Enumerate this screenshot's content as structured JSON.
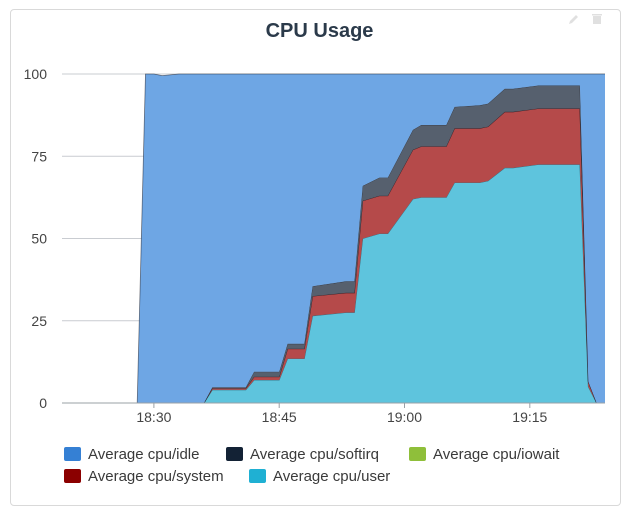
{
  "panel": {
    "title": "CPU Usage",
    "edit_icon": "pencil-icon",
    "delete_icon": "trash-icon"
  },
  "chart_data": {
    "type": "area",
    "stacked": true,
    "title": "CPU Usage",
    "xlabel": "",
    "ylabel": "",
    "ylim": [
      0,
      100
    ],
    "yticks": [
      0,
      25,
      50,
      75,
      100
    ],
    "y_tick_labels": [
      "0",
      "25",
      "50",
      "75",
      "100"
    ],
    "xlim": [
      "18:19",
      "19:24"
    ],
    "xticks": [
      "18:30",
      "18:45",
      "19:00",
      "19:15"
    ],
    "x_tick_labels": [
      "18:30",
      "18:45",
      "19:00",
      "19:15"
    ],
    "grid": true,
    "legend": "bottom",
    "x": [
      "18:19",
      "18:28",
      "18:29",
      "18:30",
      "18:31",
      "18:33",
      "18:34",
      "18:35",
      "18:36",
      "18:37",
      "18:41",
      "18:42",
      "18:45",
      "18:46",
      "18:48",
      "18:49",
      "18:53",
      "18:54",
      "18:55",
      "18:57",
      "18:58",
      "19:01",
      "19:02",
      "19:05",
      "19:06",
      "19:09",
      "19:10",
      "19:12",
      "19:13",
      "19:16",
      "19:17",
      "19:21",
      "19:22",
      "19:23",
      "19:24"
    ],
    "series": [
      {
        "name": "Average cpu/user",
        "color": "#5ec4dd",
        "values": [
          0,
          0,
          0,
          0,
          0,
          0,
          0,
          0,
          0,
          4,
          4,
          7,
          7,
          13.5,
          13.5,
          26.5,
          27.5,
          27.5,
          50,
          51.5,
          51.5,
          62,
          62.5,
          62.5,
          67,
          67,
          67.5,
          71.5,
          71.5,
          72.5,
          72.5,
          72.5,
          5,
          0,
          0
        ]
      },
      {
        "name": "Average cpu/system",
        "color": "#b54a4a",
        "values": [
          0,
          0,
          0,
          0,
          0,
          0,
          0,
          0,
          0,
          0.5,
          0.5,
          1,
          1,
          3,
          3,
          6,
          6,
          6,
          11.5,
          11.5,
          11.5,
          15,
          15.5,
          15.5,
          16.5,
          16.5,
          16.5,
          17,
          17,
          17,
          17,
          17,
          1.5,
          0,
          0
        ]
      },
      {
        "name": "Average cpu/iowait",
        "color": "#8fbf3a",
        "values": [
          0,
          0,
          0,
          0,
          0,
          0,
          0,
          0,
          0,
          0,
          0,
          0,
          0,
          0,
          0,
          0,
          0,
          0,
          0,
          0,
          0,
          0,
          0,
          0,
          0,
          0,
          0,
          0,
          0,
          0,
          0,
          0,
          0,
          0,
          0
        ]
      },
      {
        "name": "Average cpu/softirq",
        "color": "#56606e",
        "values": [
          0,
          0,
          0,
          0,
          0,
          0,
          0,
          0,
          0,
          0.3,
          0.3,
          1.5,
          1.5,
          1.5,
          1.5,
          3,
          3.5,
          3.5,
          4.5,
          5.5,
          5.5,
          6,
          6.5,
          6.5,
          6.5,
          7,
          7,
          7,
          7,
          7,
          7,
          7,
          0,
          0,
          0
        ]
      },
      {
        "name": "Average cpu/idle",
        "color": "#6ea6e4",
        "values": [
          0,
          0,
          100,
          100,
          99.5,
          100,
          100,
          100,
          100,
          95.2,
          95.2,
          90.5,
          90.5,
          82,
          82,
          64.5,
          63,
          63,
          34,
          31.5,
          31.5,
          17,
          15.5,
          15.5,
          10,
          9.5,
          9,
          4.5,
          4.5,
          3.5,
          3.5,
          3.5,
          93.5,
          100,
          100
        ]
      }
    ]
  },
  "legend": [
    {
      "label": "Average cpu/idle",
      "color": "#3580d4"
    },
    {
      "label": "Average cpu/softirq",
      "color": "#132235"
    },
    {
      "label": "Average cpu/iowait",
      "color": "#8fbf3a"
    },
    {
      "label": "Average cpu/system",
      "color": "#8b0000"
    },
    {
      "label": "Average cpu/user",
      "color": "#1fb0d3"
    }
  ]
}
